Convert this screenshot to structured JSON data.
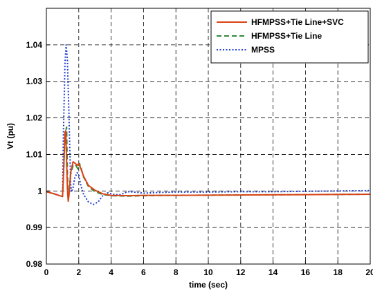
{
  "chart_data": {
    "type": "line",
    "title": "",
    "xlabel": "time (sec)",
    "ylabel": "Vt (pu)",
    "xlim": [
      0,
      20
    ],
    "ylim": [
      0.98,
      1.05
    ],
    "xticks": [
      0,
      2,
      4,
      6,
      8,
      10,
      12,
      14,
      16,
      18,
      20
    ],
    "yticks": [
      0.98,
      0.99,
      1,
      1.01,
      1.02,
      1.03,
      1.04
    ],
    "xtick_labels": [
      "0",
      "2",
      "4",
      "6",
      "8",
      "10",
      "12",
      "14",
      "16",
      "18",
      "20"
    ],
    "ytick_labels": [
      "0.98",
      "0.99",
      "1",
      "1.01",
      "1.02",
      "1.03",
      "1.04"
    ],
    "grid": true,
    "legend_position": "top-right",
    "series": [
      {
        "name": "HFMPSS+Tie Line+SVC",
        "color": "#d84315",
        "style": "solid",
        "x": [
          0,
          0.5,
          0.9,
          1.0,
          1.05,
          1.15,
          1.2,
          1.25,
          1.3,
          1.35,
          1.4,
          1.5,
          1.65,
          1.8,
          1.9,
          2.0,
          2.1,
          2.3,
          2.6,
          3.0,
          3.5,
          4.0,
          5.0,
          6.0,
          8.0,
          12.0,
          16.0,
          20.0
        ],
        "y": [
          0.9998,
          0.9992,
          0.9986,
          0.9985,
          1.0035,
          1.016,
          1.0165,
          1.008,
          1.0005,
          0.9972,
          0.999,
          1.005,
          1.008,
          1.0075,
          1.007,
          1.0075,
          1.0065,
          1.004,
          1.0015,
          1.0002,
          0.9992,
          0.9988,
          0.9987,
          0.9988,
          0.9988,
          0.9989,
          0.999,
          0.9991
        ]
      },
      {
        "name": "HFMPSS+Tie Line",
        "color": "#2e8b3a",
        "style": "dashed",
        "x": [
          0,
          0.5,
          0.9,
          1.0,
          1.05,
          1.15,
          1.25,
          1.3,
          1.35,
          1.4,
          1.5,
          1.65,
          1.8,
          1.95,
          2.05,
          2.15,
          2.3,
          2.6,
          3.0,
          3.5,
          4.0,
          5.0,
          6.0,
          8.0,
          12.0,
          16.0,
          20.0
        ],
        "y": [
          0.9998,
          0.9992,
          0.9986,
          0.9985,
          1.003,
          1.0155,
          1.0175,
          1.005,
          0.9975,
          0.999,
          1.0045,
          1.007,
          1.0072,
          1.006,
          1.0075,
          1.0062,
          1.0038,
          1.0012,
          0.9998,
          0.999,
          0.9987,
          0.9986,
          0.9987,
          0.9988,
          0.9989,
          0.999,
          0.9991
        ]
      },
      {
        "name": "MPSS",
        "color": "#1f3fd1",
        "style": "dotted",
        "x": [
          0,
          0.5,
          0.9,
          1.0,
          1.05,
          1.15,
          1.22,
          1.3,
          1.4,
          1.5,
          1.55,
          1.65,
          1.75,
          1.9,
          2.0,
          2.1,
          2.3,
          2.6,
          2.9,
          3.2,
          3.5,
          3.8,
          4.2,
          4.6,
          5.0,
          5.4,
          6.0,
          7.0,
          8.0,
          10.0,
          12.0,
          14.0,
          16.0,
          18.0,
          20.0
        ],
        "y": [
          0.9998,
          0.9992,
          0.9986,
          0.9985,
          1.015,
          1.035,
          1.04,
          1.036,
          1.02,
          1.002,
          0.9997,
          1.001,
          1.0035,
          1.005,
          1.0045,
          1.002,
          0.999,
          0.997,
          0.9963,
          0.997,
          0.9988,
          0.9995,
          0.999,
          0.999,
          0.9998,
          0.9997,
          0.9994,
          0.9996,
          0.9997,
          0.9997,
          0.9998,
          0.9998,
          0.9999,
          1.0,
          1.0001
        ]
      }
    ]
  }
}
